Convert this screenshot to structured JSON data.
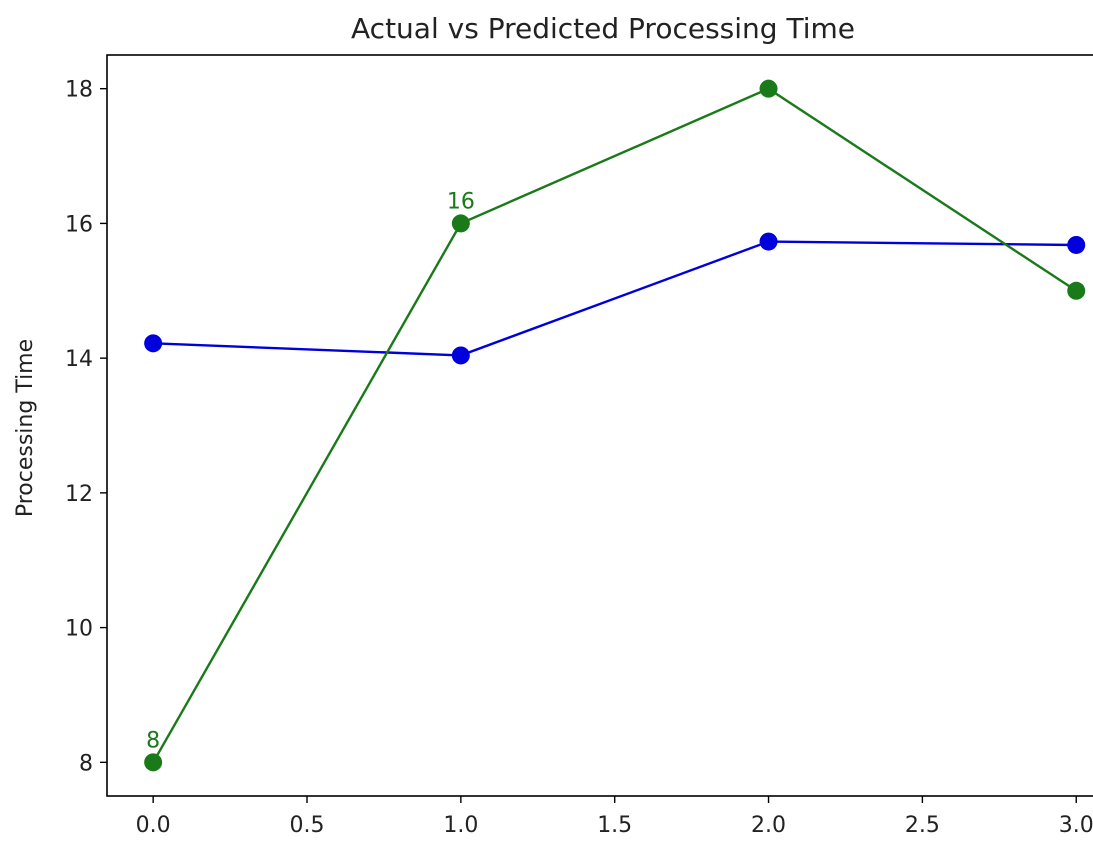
{
  "chart_data": {
    "type": "line",
    "title": "Actual vs Predicted Processing Time",
    "xlabel": "",
    "ylabel": "Processing Time",
    "xlim": [
      -0.15,
      3.1
    ],
    "ylim": [
      7.5,
      18.5
    ],
    "xticks": [
      "0.0",
      "0.5",
      "1.0",
      "1.5",
      "2.0",
      "2.5",
      "3.0"
    ],
    "yticks": [
      "8",
      "10",
      "12",
      "14",
      "16",
      "18"
    ],
    "grid": false,
    "x": [
      0,
      1,
      2,
      3
    ],
    "series": [
      {
        "color": "#0000dd",
        "values": [
          14.22,
          14.04,
          15.73,
          15.68
        ],
        "labels": [
          "",
          "",
          "",
          ""
        ]
      },
      {
        "color": "#1a7a1a",
        "values": [
          8,
          16,
          18,
          15
        ],
        "labels": [
          "8",
          "16",
          "",
          ""
        ]
      }
    ]
  }
}
